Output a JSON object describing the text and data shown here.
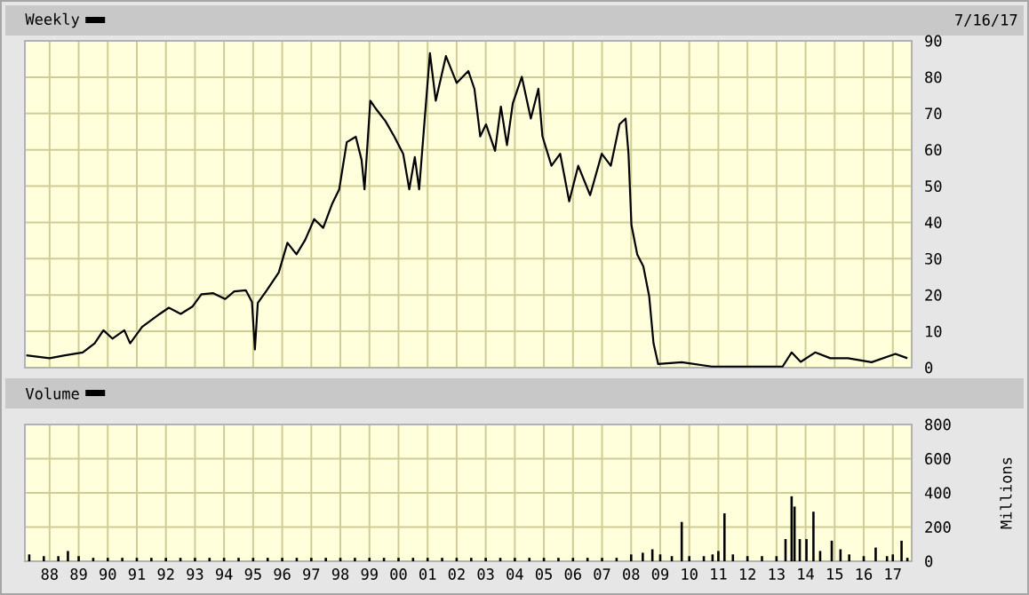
{
  "chart_data": [
    {
      "type": "line",
      "annotations": [
        "7/16/17"
      ],
      "legend": "top left",
      "grid": true,
      "tick_labels": "y",
      "series": [
        {
          "name": "Weekly",
          "color": "#000000",
          "x": [
            1987.2,
            1988.0,
            1988.53,
            1989.14,
            1989.55,
            1989.85,
            1990.16,
            1990.57,
            1990.77,
            1991.18,
            1991.79,
            1992.1,
            1992.51,
            1992.91,
            1993.22,
            1993.63,
            1994.04,
            1994.35,
            1994.75,
            1994.96,
            1995.06,
            1995.16,
            1995.47,
            1995.88,
            1996.18,
            1996.49,
            1996.79,
            1997.1,
            1997.41,
            1997.71,
            1997.96,
            1998.22,
            1998.53,
            1998.73,
            1998.83,
            1999.03,
            1999.24,
            1999.55,
            1999.85,
            2000.16,
            2000.37,
            2000.56,
            2000.71,
            2000.87,
            2001.08,
            2001.28,
            2001.63,
            2002.0,
            2002.4,
            2002.61,
            2002.81,
            2003.01,
            2003.32,
            2003.52,
            2003.73,
            2003.93,
            2004.24,
            2004.55,
            2004.81,
            2004.95,
            2005.26,
            2005.56,
            2005.87,
            2006.18,
            2006.59,
            2006.99,
            2007.3,
            2007.6,
            2007.81,
            2007.91,
            2008.01,
            2008.21,
            2008.42,
            2008.62,
            2008.77,
            2008.93,
            2009.74,
            2010.77,
            2013.21,
            2013.52,
            2013.83,
            2014.33,
            2014.85,
            2015.46,
            2016.27,
            2017.09,
            2017.5
          ],
          "values": [
            3.4,
            2.6,
            3.4,
            4.2,
            6.7,
            10.3,
            8.0,
            10.3,
            6.7,
            11.2,
            14.8,
            16.5,
            14.8,
            16.8,
            20.2,
            20.5,
            18.9,
            21.0,
            21.3,
            18.1,
            5.0,
            17.8,
            21.3,
            26.2,
            34.4,
            31.2,
            35.2,
            40.9,
            38.5,
            45.0,
            49.1,
            62.1,
            63.6,
            57.2,
            49.1,
            73.5,
            71.1,
            67.9,
            63.7,
            58.9,
            49.1,
            58.0,
            49.1,
            65.4,
            86.6,
            73.5,
            85.8,
            78.4,
            81.7,
            76.8,
            63.7,
            67.0,
            59.7,
            71.9,
            61.3,
            72.8,
            80.1,
            68.6,
            76.8,
            63.7,
            55.6,
            58.9,
            45.8,
            55.6,
            47.5,
            58.9,
            55.6,
            67.0,
            68.6,
            58.9,
            39.3,
            31.2,
            27.9,
            19.7,
            6.7,
            1.0,
            1.5,
            0.3,
            0.3,
            4.2,
            1.6,
            4.2,
            2.6,
            2.6,
            1.5,
            3.8,
            2.6
          ]
        }
      ],
      "xlim": [
        1987.15,
        2017.65
      ],
      "xticks": [
        {
          "value": 1988,
          "label": null
        },
        {
          "value": 1989,
          "label": null
        },
        {
          "value": 1990,
          "label": null
        },
        {
          "value": 1991,
          "label": null
        },
        {
          "value": 1992,
          "label": null
        },
        {
          "value": 1993,
          "label": null
        },
        {
          "value": 1994,
          "label": null
        },
        {
          "value": 1995,
          "label": null
        },
        {
          "value": 1996,
          "label": null
        },
        {
          "value": 1997,
          "label": null
        },
        {
          "value": 1998,
          "label": null
        },
        {
          "value": 1999,
          "label": null
        },
        {
          "value": 2000,
          "label": null
        },
        {
          "value": 2001,
          "label": null
        },
        {
          "value": 2002,
          "label": null
        },
        {
          "value": 2003,
          "label": null
        },
        {
          "value": 2004,
          "label": null
        },
        {
          "value": 2005,
          "label": null
        },
        {
          "value": 2006,
          "label": null
        },
        {
          "value": 2007,
          "label": null
        },
        {
          "value": 2008,
          "label": null
        },
        {
          "value": 2009,
          "label": null
        },
        {
          "value": 2010,
          "label": null
        },
        {
          "value": 2011,
          "label": null
        },
        {
          "value": 2012,
          "label": null
        },
        {
          "value": 2013,
          "label": null
        },
        {
          "value": 2014,
          "label": null
        },
        {
          "value": 2015,
          "label": null
        },
        {
          "value": 2016,
          "label": null
        },
        {
          "value": 2017,
          "label": null
        }
      ],
      "ylim": [
        0,
        90
      ],
      "yticks": [
        0,
        10,
        20,
        30,
        40,
        50,
        60,
        70,
        80,
        90
      ]
    },
    {
      "type": "bar",
      "ylabel": "Millions",
      "legend": "top left",
      "grid": true,
      "series": [
        {
          "name": "Volume",
          "color": "#000000",
          "x": [
            1987.3,
            1987.8,
            1988.3,
            1988.63,
            1989.0,
            1989.5,
            1990.0,
            1990.5,
            1991.0,
            1991.5,
            1992.0,
            1992.5,
            1993.0,
            1993.5,
            1994.0,
            1994.5,
            1995.0,
            1995.5,
            1996.0,
            1996.5,
            1997.0,
            1997.5,
            1998.0,
            1998.5,
            1999.0,
            1999.5,
            2000.0,
            2000.5,
            2001.0,
            2001.5,
            2002.0,
            2002.5,
            2003.0,
            2003.5,
            2004.0,
            2004.5,
            2005.0,
            2005.5,
            2006.0,
            2006.5,
            2007.0,
            2007.5,
            2008.0,
            2008.4,
            2008.73,
            2009.0,
            2009.4,
            2009.74,
            2010.0,
            2010.5,
            2010.8,
            2011.0,
            2011.21,
            2011.5,
            2012.0,
            2012.5,
            2013.0,
            2013.31,
            2013.52,
            2013.62,
            2013.8,
            2014.03,
            2014.27,
            2014.5,
            2014.9,
            2015.2,
            2015.5,
            2016.0,
            2016.41,
            2016.8,
            2017.0,
            2017.3,
            2017.5
          ],
          "values": [
            40,
            30,
            30,
            60,
            30,
            20,
            20,
            20,
            20,
            20,
            20,
            20,
            20,
            20,
            20,
            20,
            20,
            20,
            20,
            20,
            20,
            20,
            20,
            20,
            20,
            20,
            20,
            20,
            20,
            20,
            20,
            20,
            20,
            20,
            20,
            20,
            20,
            20,
            20,
            20,
            20,
            20,
            40,
            50,
            70,
            40,
            30,
            230,
            30,
            30,
            40,
            60,
            280,
            40,
            30,
            30,
            30,
            130,
            380,
            320,
            130,
            130,
            290,
            60,
            120,
            70,
            40,
            30,
            80,
            30,
            40,
            120,
            20
          ]
        }
      ],
      "xlim": [
        1987.15,
        2017.65
      ],
      "xticks": [
        {
          "value": 1988,
          "label": "88"
        },
        {
          "value": 1989,
          "label": "89"
        },
        {
          "value": 1990,
          "label": "90"
        },
        {
          "value": 1991,
          "label": "91"
        },
        {
          "value": 1992,
          "label": "92"
        },
        {
          "value": 1993,
          "label": "93"
        },
        {
          "value": 1994,
          "label": "94"
        },
        {
          "value": 1995,
          "label": "95"
        },
        {
          "value": 1996,
          "label": "96"
        },
        {
          "value": 1997,
          "label": "97"
        },
        {
          "value": 1998,
          "label": "98"
        },
        {
          "value": 1999,
          "label": "99"
        },
        {
          "value": 2000,
          "label": "00"
        },
        {
          "value": 2001,
          "label": "01"
        },
        {
          "value": 2002,
          "label": "02"
        },
        {
          "value": 2003,
          "label": "03"
        },
        {
          "value": 2004,
          "label": "04"
        },
        {
          "value": 2005,
          "label": "05"
        },
        {
          "value": 2006,
          "label": "06"
        },
        {
          "value": 2007,
          "label": "07"
        },
        {
          "value": 2008,
          "label": "08"
        },
        {
          "value": 2009,
          "label": "09"
        },
        {
          "value": 2010,
          "label": "10"
        },
        {
          "value": 2011,
          "label": "11"
        },
        {
          "value": 2012,
          "label": "12"
        },
        {
          "value": 2013,
          "label": "13"
        },
        {
          "value": 2014,
          "label": "14"
        },
        {
          "value": 2015,
          "label": "15"
        },
        {
          "value": 2016,
          "label": "16"
        },
        {
          "value": 2017,
          "label": "17"
        }
      ],
      "ylim": [
        0,
        800
      ],
      "yticks": [
        0,
        200,
        400,
        600,
        800
      ]
    }
  ]
}
